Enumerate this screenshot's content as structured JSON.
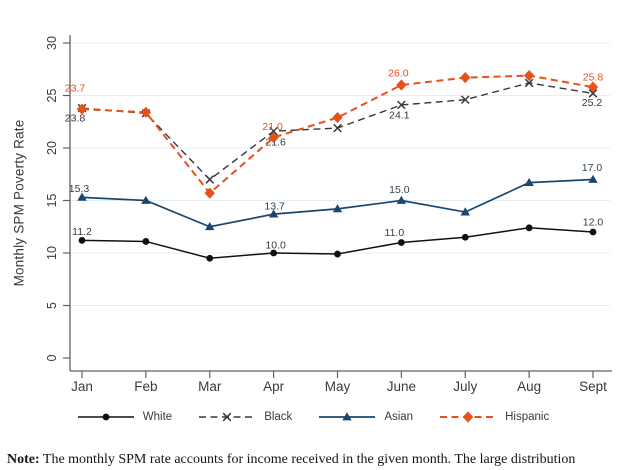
{
  "figure": {
    "note_prefix": "Note:",
    "note_text": " The monthly SPM rate accounts for income received in the given month. The large distribution"
  },
  "chart_data": {
    "type": "line",
    "title": "",
    "xlabel": "",
    "ylabel": "Monthly SPM Poverty Rate",
    "categories": [
      "Jan",
      "Feb",
      "Mar",
      "Apr",
      "May",
      "June",
      "July",
      "Aug",
      "Sept"
    ],
    "ylim": [
      0,
      30
    ],
    "yticks": [
      0,
      5,
      10,
      15,
      20,
      25,
      30
    ],
    "grid": "horizontal-light",
    "legend_position": "bottom",
    "series": [
      {
        "name": "White",
        "color": "#101010",
        "label_color": "#3a3a3a",
        "line": "solid",
        "marker": "circle",
        "width": 1.5,
        "values": [
          11.2,
          11.1,
          9.5,
          10.0,
          9.9,
          11.0,
          11.5,
          12.4,
          12.0
        ],
        "point_labels": [
          {
            "i": 0,
            "text": "11.2",
            "dx": 0,
            "dy": -9
          },
          {
            "i": 3,
            "text": "10.0",
            "dx": 2,
            "dy": -8
          },
          {
            "i": 5,
            "text": "11.0",
            "dx": -7,
            "dy": -10
          },
          {
            "i": 8,
            "text": "12.0",
            "dx": 0,
            "dy": -10
          }
        ]
      },
      {
        "name": "Black",
        "color": "#383838",
        "label_color": "#3a3a3a",
        "line": "dashed",
        "marker": "x",
        "width": 1.4,
        "values": [
          23.8,
          23.3,
          17.0,
          21.6,
          21.9,
          24.1,
          24.6,
          26.2,
          25.2
        ],
        "point_labels": [
          {
            "i": 0,
            "text": "23.8",
            "dx": -7,
            "dy": 10
          },
          {
            "i": 3,
            "text": "21.6",
            "dx": 2,
            "dy": 11
          },
          {
            "i": 5,
            "text": "24.1",
            "dx": -2,
            "dy": 10
          },
          {
            "i": 8,
            "text": "25.2",
            "dx": -1,
            "dy": 9
          }
        ]
      },
      {
        "name": "Asian",
        "color": "#1a476f",
        "label_color": "#2c4357",
        "line": "solid",
        "marker": "triangle",
        "width": 1.7,
        "values": [
          15.3,
          15.0,
          12.5,
          13.7,
          14.2,
          15.0,
          13.9,
          16.7,
          17.0
        ],
        "point_labels": [
          {
            "i": 0,
            "text": "15.3",
            "dx": -3,
            "dy": -9
          },
          {
            "i": 3,
            "text": "13.7",
            "dx": 1,
            "dy": -8
          },
          {
            "i": 5,
            "text": "15.0",
            "dx": -2,
            "dy": -11
          },
          {
            "i": 8,
            "text": "17.0",
            "dx": -1,
            "dy": -12
          }
        ]
      },
      {
        "name": "Hispanic",
        "color": "#e8501a",
        "label_color": "#e8501a",
        "line": "dashed",
        "marker": "diamond",
        "width": 2,
        "values": [
          23.7,
          23.4,
          15.7,
          21.0,
          22.9,
          26.0,
          26.7,
          26.9,
          25.8
        ],
        "point_labels": [
          {
            "i": 0,
            "text": "23.7",
            "dx": -7,
            "dy": -21
          },
          {
            "i": 3,
            "text": "21.0",
            "dx": -1,
            "dy": -11
          },
          {
            "i": 5,
            "text": "26.0",
            "dx": -3,
            "dy": -12
          },
          {
            "i": 8,
            "text": "25.8",
            "dx": 0,
            "dy": -10
          }
        ]
      }
    ]
  }
}
